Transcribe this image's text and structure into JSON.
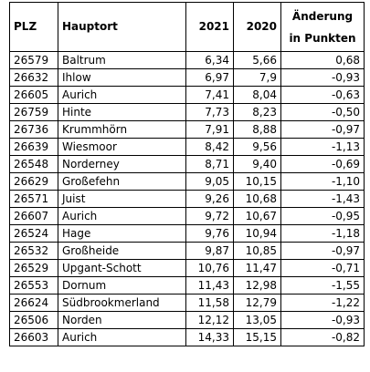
{
  "table": {
    "headers": {
      "plz": "PLZ",
      "hauptort": "Hauptort",
      "y2021": "2021",
      "y2020": "2020",
      "change_line1": "Änderung",
      "change_line2": "in Punkten"
    },
    "rows": [
      {
        "plz": "26579",
        "ort": "Baltrum",
        "v2021": "6,34",
        "v2020": "5,66",
        "change": "0,68"
      },
      {
        "plz": "26632",
        "ort": "Ihlow",
        "v2021": "6,97",
        "v2020": "7,9",
        "change": "-0,93"
      },
      {
        "plz": "26605",
        "ort": "Aurich",
        "v2021": "7,41",
        "v2020": "8,04",
        "change": "-0,63"
      },
      {
        "plz": "26759",
        "ort": "Hinte",
        "v2021": "7,73",
        "v2020": "8,23",
        "change": "-0,50"
      },
      {
        "plz": "26736",
        "ort": "Krummhörn",
        "v2021": "7,91",
        "v2020": "8,88",
        "change": "-0,97"
      },
      {
        "plz": "26639",
        "ort": "Wiesmoor",
        "v2021": "8,42",
        "v2020": "9,56",
        "change": "-1,13"
      },
      {
        "plz": "26548",
        "ort": "Norderney",
        "v2021": "8,71",
        "v2020": "9,40",
        "change": "-0,69"
      },
      {
        "plz": "26629",
        "ort": "Großefehn",
        "v2021": "9,05",
        "v2020": "10,15",
        "change": "-1,10"
      },
      {
        "plz": "26571",
        "ort": "Juist",
        "v2021": "9,26",
        "v2020": "10,68",
        "change": "-1,43"
      },
      {
        "plz": "26607",
        "ort": "Aurich",
        "v2021": "9,72",
        "v2020": "10,67",
        "change": "-0,95"
      },
      {
        "plz": "26524",
        "ort": "Hage",
        "v2021": "9,76",
        "v2020": "10,94",
        "change": "-1,18"
      },
      {
        "plz": "26532",
        "ort": "Großheide",
        "v2021": "9,87",
        "v2020": "10,85",
        "change": "-0,97"
      },
      {
        "plz": "26529",
        "ort": "Upgant-Schott",
        "v2021": "10,76",
        "v2020": "11,47",
        "change": "-0,71"
      },
      {
        "plz": "26553",
        "ort": "Dornum",
        "v2021": "11,43",
        "v2020": "12,98",
        "change": "-1,55"
      },
      {
        "plz": "26624",
        "ort": "Südbrookmerland",
        "v2021": "11,58",
        "v2020": "12,79",
        "change": "-1,22"
      },
      {
        "plz": "26506",
        "ort": "Norden",
        "v2021": "12,12",
        "v2020": "13,05",
        "change": "-0,93"
      },
      {
        "plz": "26603",
        "ort": "Aurich",
        "v2021": "14,33",
        "v2020": "15,15",
        "change": "-0,82"
      }
    ]
  }
}
